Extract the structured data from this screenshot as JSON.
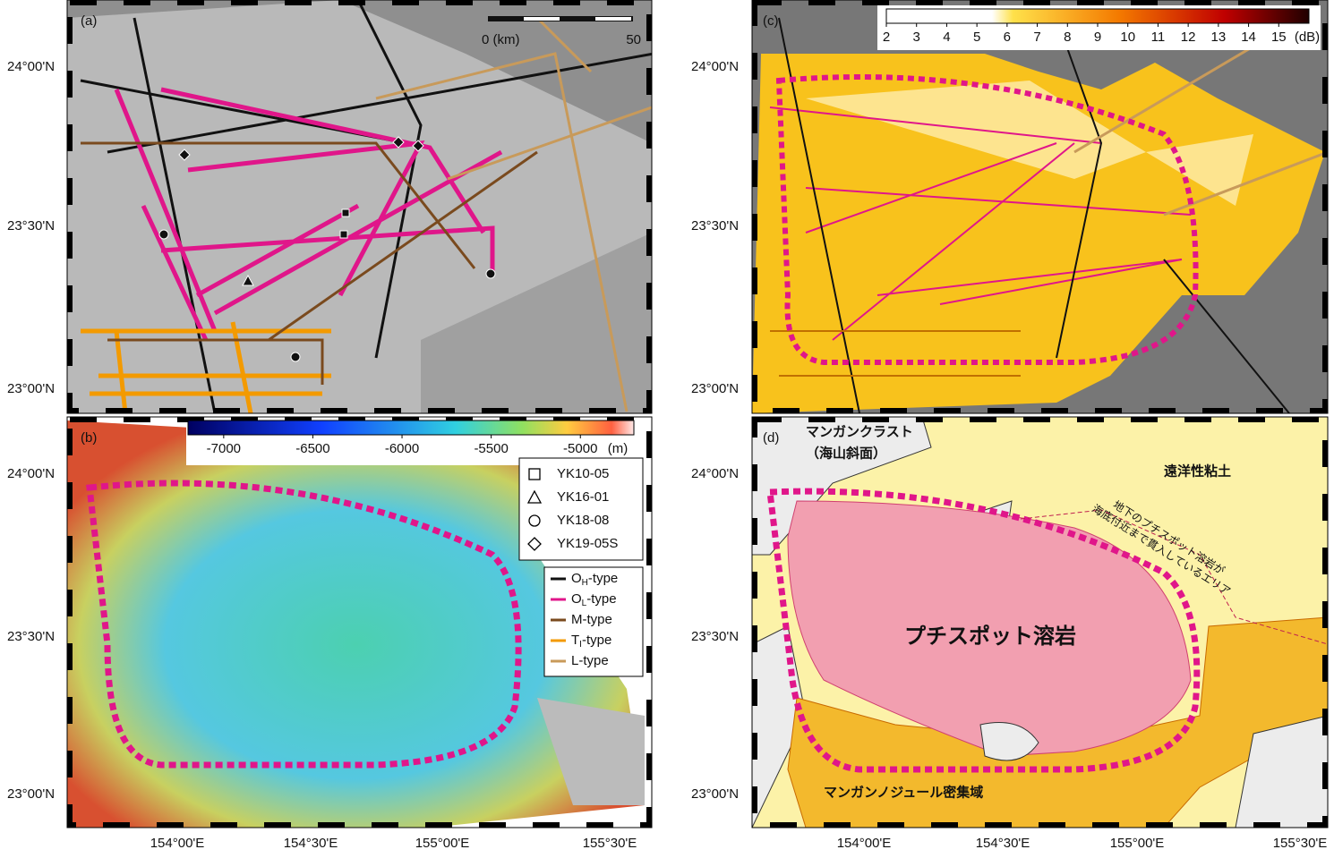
{
  "panels": {
    "a": "(a)",
    "b": "(b)",
    "c": "(c)",
    "d": "(d)"
  },
  "axes": {
    "y_labels": [
      "24°00'N",
      "23°30'N",
      "23°00'N"
    ],
    "x_labels": [
      "154°00'E",
      "154°30'E",
      "155°00'E",
      "155°30'E"
    ]
  },
  "scale_bar": {
    "start": "0 (km)",
    "end": "50"
  },
  "backscatter_colorbar": {
    "range": [
      2,
      16
    ],
    "ticks": [
      2,
      3,
      4,
      5,
      6,
      7,
      8,
      9,
      10,
      11,
      12,
      13,
      14,
      15
    ],
    "unit": "(dB)"
  },
  "depth_colorbar": {
    "range": [
      -7200,
      -4700
    ],
    "ticks": [
      -7000,
      -6500,
      -6000,
      -5500,
      -5000
    ],
    "unit": "(m)"
  },
  "cruise_legend": [
    "YK10-05",
    "YK16-01",
    "YK18-08",
    "YK19-05S"
  ],
  "type_legend": [
    {
      "main": "O",
      "sub": "H",
      "rest": "-type",
      "color": "#111111"
    },
    {
      "main": "O",
      "sub": "L",
      "rest": "-type",
      "color": "#e0168a"
    },
    {
      "main": "M-type",
      "sub": "",
      "rest": "",
      "color": "#7a4a1e"
    },
    {
      "main": "T",
      "sub": "I",
      "rest": "-type",
      "color": "#f39a00"
    },
    {
      "main": "L-type",
      "sub": "",
      "rest": "",
      "color": "#c89a5a"
    }
  ],
  "map_labels": {
    "crust": "マンガンクラスト",
    "crust_note": "（海山斜面）",
    "clay": "遠洋性粘土",
    "intrusion_1": "地下のプチスポット溶岩が",
    "intrusion_2": "海底付近まで貫入しているエリア",
    "lava": "プチスポット溶岩",
    "nodule": "マンガンノジュール密集域"
  }
}
